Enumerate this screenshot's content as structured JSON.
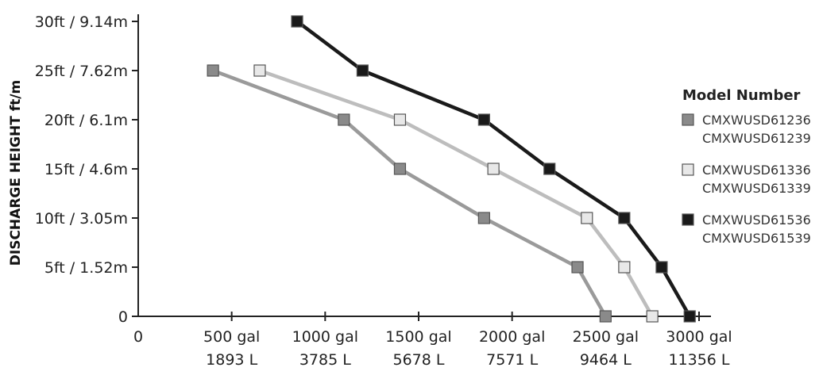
{
  "chart_data": {
    "type": "line",
    "title": "",
    "ylabel": "DISCHARGE HEIGHT ft/m",
    "xlabel": "",
    "xlim": [
      0,
      3000
    ],
    "ylim": [
      0,
      30
    ],
    "x_ticks": [
      {
        "value": 0,
        "line1": "0",
        "line2": ""
      },
      {
        "value": 500,
        "line1": "500 gal",
        "line2": "1893 L"
      },
      {
        "value": 1000,
        "line1": "1000 gal",
        "line2": "3785 L"
      },
      {
        "value": 1500,
        "line1": "1500 gal",
        "line2": "5678 L"
      },
      {
        "value": 2000,
        "line1": "2000 gal",
        "line2": "7571 L"
      },
      {
        "value": 2500,
        "line1": "2500 gal",
        "line2": "9464 L"
      },
      {
        "value": 3000,
        "line1": "3000 gal",
        "line2": "11356 L"
      }
    ],
    "y_ticks": [
      {
        "value": 0,
        "label": "0"
      },
      {
        "value": 5,
        "label": "5ft / 1.52m"
      },
      {
        "value": 10,
        "label": "10ft / 3.05m"
      },
      {
        "value": 15,
        "label": "15ft / 4.6m"
      },
      {
        "value": 20,
        "label": "20ft / 6.1m"
      },
      {
        "value": 25,
        "label": "25ft / 7.62m"
      },
      {
        "value": 30,
        "label": "30ft / 9.14m"
      }
    ],
    "legend_title": "Model Number",
    "legend_position": "right",
    "series": [
      {
        "name": "CMXWUSD61236 / CMXWUSD61239",
        "labels": [
          "CMXWUSD61236",
          "CMXWUSD61239"
        ],
        "color": "#8a8a8a",
        "line_color": "#9a9a9a",
        "points": [
          [
            400,
            25
          ],
          [
            1100,
            20
          ],
          [
            1400,
            15
          ],
          [
            1850,
            10
          ],
          [
            2350,
            5
          ],
          [
            2500,
            0
          ]
        ]
      },
      {
        "name": "CMXWUSD61336 / CMXWUSD61339",
        "labels": [
          "CMXWUSD61336",
          "CMXWUSD61339"
        ],
        "color": "#e8e8e8",
        "line_color": "#bdbdbd",
        "points": [
          [
            650,
            25
          ],
          [
            1400,
            20
          ],
          [
            1900,
            15
          ],
          [
            2400,
            10
          ],
          [
            2600,
            5
          ],
          [
            2750,
            0
          ]
        ]
      },
      {
        "name": "CMXWUSD61536 / CMXWUSD61539",
        "labels": [
          "CMXWUSD61536",
          "CMXWUSD61539"
        ],
        "color": "#1a1a1a",
        "line_color": "#1a1a1a",
        "points": [
          [
            850,
            30
          ],
          [
            1200,
            25
          ],
          [
            1850,
            20
          ],
          [
            2200,
            15
          ],
          [
            2600,
            10
          ],
          [
            2800,
            5
          ],
          [
            2950,
            0
          ]
        ]
      }
    ]
  }
}
